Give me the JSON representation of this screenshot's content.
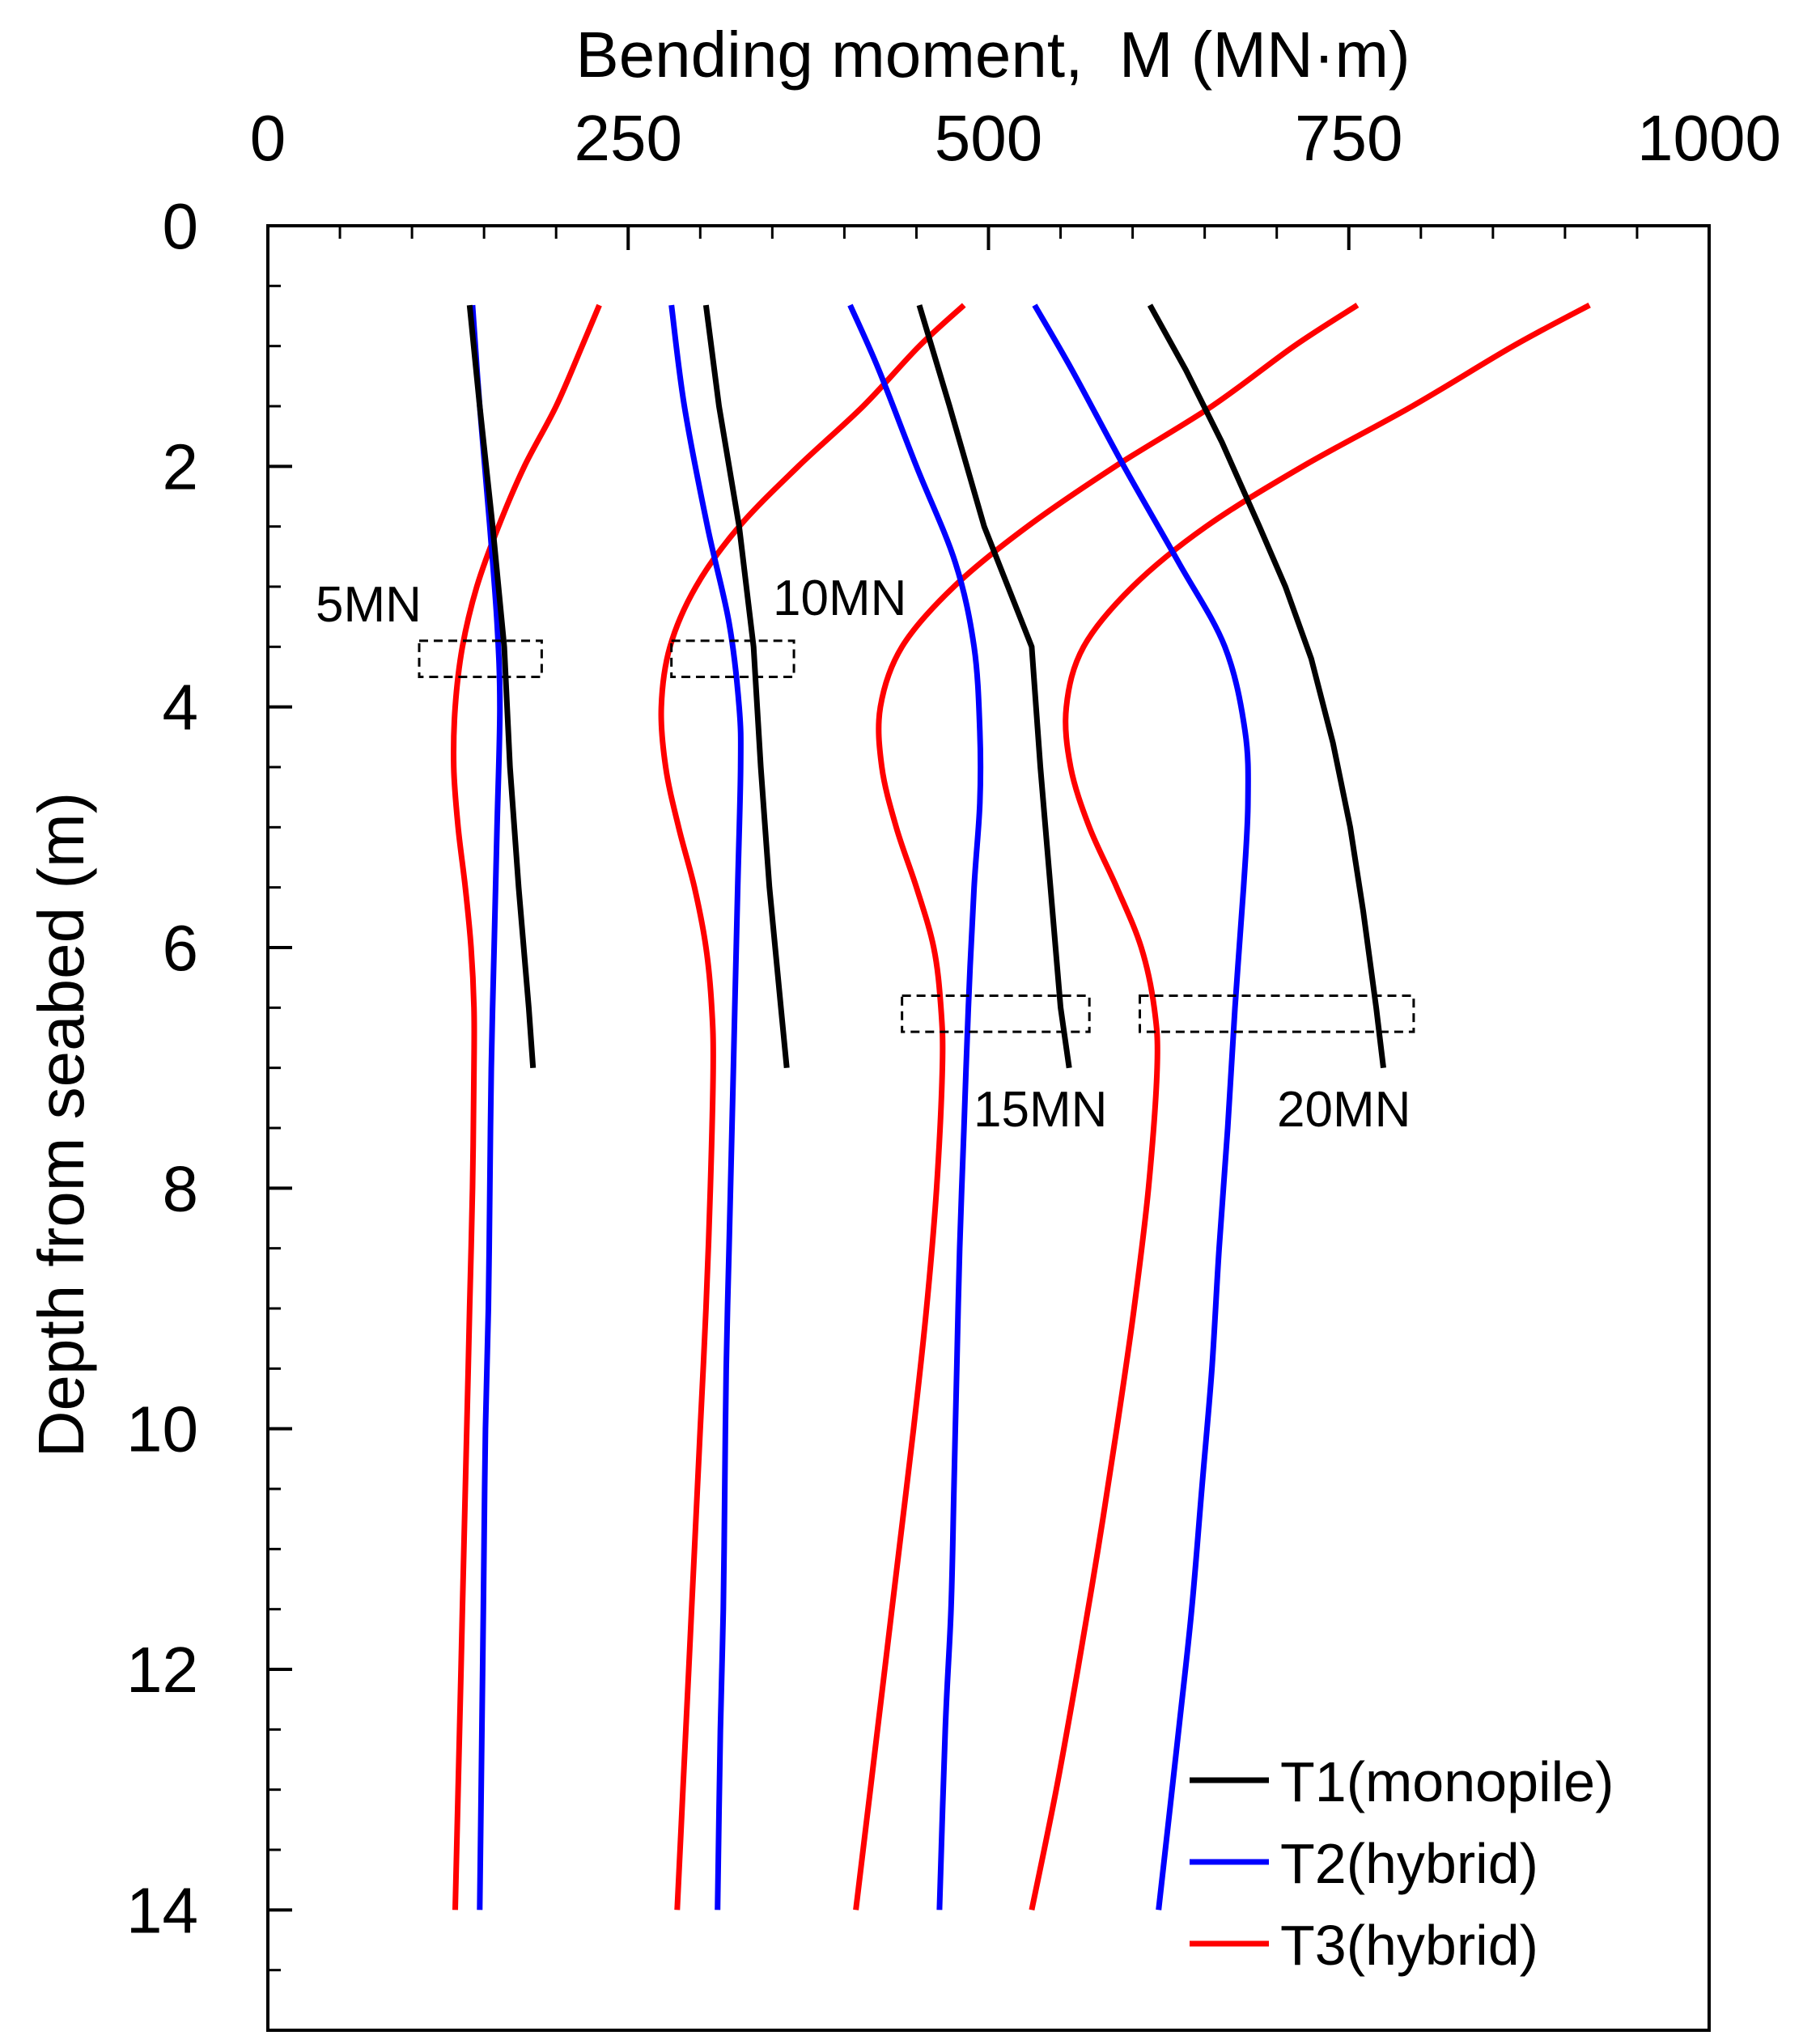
{
  "chart_data": {
    "type": "line",
    "orientation": "depth-profile",
    "xlabel": "Bending moment,  M (MN·m)",
    "ylabel": "Depth from seabed (m)",
    "xlim": [
      0,
      1000
    ],
    "ylim": [
      0,
      15
    ],
    "x_axis_position": "top",
    "y_inverted": true,
    "xticks": [
      0,
      250,
      500,
      750,
      1000
    ],
    "xtick_labels": [
      "0",
      "250",
      "500",
      "750",
      "1000"
    ],
    "yticks": [
      0,
      2,
      4,
      6,
      8,
      10,
      12,
      14
    ],
    "ytick_labels": [
      "0",
      "2",
      "4",
      "6",
      "8",
      "10",
      "12",
      "14"
    ],
    "legend": {
      "position": "bottom-right",
      "entries": [
        {
          "label": "T1(monopile)",
          "color": "#000000"
        },
        {
          "label": "T2(hybrid)",
          "color": "#0000ff"
        },
        {
          "label": "T3(hybrid)",
          "color": "#ff0000"
        }
      ]
    },
    "colors": {
      "T1": "#000000",
      "T2": "#0000ff",
      "T3": "#ff0000",
      "box": "#000000"
    },
    "load_cases": [
      {
        "label": "5MN",
        "series": [
          {
            "name": "T1(monopile)",
            "color": "#000000",
            "points": [
              [
                140,
                0.66
              ],
              [
                147,
                1.5
              ],
              [
                156,
                2.5
              ],
              [
                164,
                3.5
              ],
              [
                168,
                4.5
              ],
              [
                174,
                5.5
              ],
              [
                181,
                6.5
              ],
              [
                184,
                7.0
              ]
            ]
          },
          {
            "name": "T2(hybrid)",
            "color": "#0000ff",
            "points": [
              [
                142,
                0.66
              ],
              [
                147,
                1.5
              ],
              [
                154,
                2.5
              ],
              [
                159,
                3.3
              ],
              [
                161,
                4.0
              ],
              [
                159,
                5.0
              ],
              [
                157,
                6.0
              ],
              [
                155,
                7.0
              ],
              [
                154,
                8.0
              ],
              [
                153,
                9.0
              ],
              [
                151,
                10.0
              ],
              [
                150,
                11.0
              ],
              [
                149,
                12.0
              ],
              [
                148,
                13.0
              ],
              [
                147,
                14.0
              ]
            ]
          },
          {
            "name": "T3(hybrid)",
            "color": "#ff0000",
            "points": [
              [
                230,
                0.66
              ],
              [
                218,
                1.0
              ],
              [
                200,
                1.5
              ],
              [
                178,
                2.0
              ],
              [
                160,
                2.5
              ],
              [
                145,
                3.0
              ],
              [
                135,
                3.5
              ],
              [
                130,
                4.0
              ],
              [
                129,
                4.5
              ],
              [
                132,
                5.0
              ],
              [
                137,
                5.5
              ],
              [
                141,
                6.0
              ],
              [
                143,
                6.5
              ],
              [
                143,
                7.0
              ],
              [
                142,
                8.0
              ],
              [
                140,
                9.0
              ],
              [
                138,
                10.0
              ],
              [
                136,
                11.0
              ],
              [
                134,
                12.0
              ],
              [
                132,
                13.0
              ],
              [
                130,
                14.0
              ]
            ]
          }
        ],
        "max_box": {
          "x_range": [
            105,
            190
          ],
          "depth_range": [
            3.45,
            3.75
          ]
        }
      },
      {
        "label": "10MN",
        "series": [
          {
            "name": "T1(monopile)",
            "color": "#000000",
            "points": [
              [
                304,
                0.66
              ],
              [
                313,
                1.5
              ],
              [
                327,
                2.5
              ],
              [
                337,
                3.5
              ],
              [
                342,
                4.5
              ],
              [
                348,
                5.5
              ],
              [
                356,
                6.5
              ],
              [
                360,
                7.0
              ]
            ]
          },
          {
            "name": "T2(hybrid)",
            "color": "#0000ff",
            "points": [
              [
                280,
                0.66
              ],
              [
                289,
                1.5
              ],
              [
                305,
                2.5
              ],
              [
                320,
                3.3
              ],
              [
                327,
                4.0
              ],
              [
                328,
                4.5
              ],
              [
                326,
                5.5
              ],
              [
                324,
                6.5
              ],
              [
                322,
                7.5
              ],
              [
                320,
                8.5
              ],
              [
                318,
                9.5
              ],
              [
                317,
                10.5
              ],
              [
                316,
                11.5
              ],
              [
                314,
                12.5
              ],
              [
                312,
                14.0
              ]
            ]
          },
          {
            "name": "T3(hybrid)",
            "color": "#ff0000",
            "points": [
              [
                483,
                0.66
              ],
              [
                452,
                1.0
              ],
              [
                413,
                1.5
              ],
              [
                368,
                2.0
              ],
              [
                327,
                2.5
              ],
              [
                297,
                3.0
              ],
              [
                279,
                3.5
              ],
              [
                273,
                4.0
              ],
              [
                276,
                4.5
              ],
              [
                285,
                5.0
              ],
              [
                296,
                5.5
              ],
              [
                304,
                6.0
              ],
              [
                308,
                6.5
              ],
              [
                309,
                7.0
              ],
              [
                307,
                8.0
              ],
              [
                304,
                9.0
              ],
              [
                300,
                10.0
              ],
              [
                296,
                11.0
              ],
              [
                292,
                12.0
              ],
              [
                288,
                13.0
              ],
              [
                284,
                14.0
              ]
            ]
          }
        ],
        "max_box": {
          "x_range": [
            280,
            365
          ],
          "depth_range": [
            3.45,
            3.75
          ]
        }
      },
      {
        "label": "15MN",
        "series": [
          {
            "name": "T1(monopile)",
            "color": "#000000",
            "points": [
              [
                452,
                0.66
              ],
              [
                473,
                1.5
              ],
              [
                497,
                2.5
              ],
              [
                530,
                3.5
              ],
              [
                536,
                4.5
              ],
              [
                543,
                5.5
              ],
              [
                550,
                6.5
              ],
              [
                556,
                7.0
              ]
            ]
          },
          {
            "name": "T2(hybrid)",
            "color": "#0000ff",
            "points": [
              [
                404,
                0.66
              ],
              [
                424,
                1.2
              ],
              [
                450,
                2.0
              ],
              [
                477,
                2.8
              ],
              [
                490,
                3.5
              ],
              [
                494,
                4.2
              ],
              [
                494,
                4.8
              ],
              [
                490,
                5.5
              ],
              [
                486,
                6.5
              ],
              [
                483,
                7.5
              ],
              [
                480,
                8.5
              ],
              [
                478,
                9.5
              ],
              [
                476,
                10.5
              ],
              [
                474,
                11.5
              ],
              [
                470,
                12.5
              ],
              [
                466,
                14.0
              ]
            ]
          },
          {
            "name": "T3(hybrid)",
            "color": "#ff0000",
            "points": [
              [
                756,
                0.66
              ],
              [
                712,
                1.0
              ],
              [
                655,
                1.5
              ],
              [
                588,
                2.0
              ],
              [
                527,
                2.5
              ],
              [
                476,
                3.0
              ],
              [
                440,
                3.5
              ],
              [
                425,
                4.0
              ],
              [
                426,
                4.5
              ],
              [
                436,
                5.0
              ],
              [
                450,
                5.5
              ],
              [
                462,
                6.0
              ],
              [
                467,
                6.5
              ],
              [
                468,
                7.0
              ],
              [
                464,
                8.0
              ],
              [
                457,
                9.0
              ],
              [
                448,
                10.0
              ],
              [
                438,
                11.0
              ],
              [
                428,
                12.0
              ],
              [
                418,
                13.0
              ],
              [
                408,
                14.0
              ]
            ]
          }
        ],
        "max_box": {
          "x_range": [
            440,
            570
          ],
          "depth_range": [
            6.4,
            6.7
          ]
        }
      },
      {
        "label": "20MN",
        "series": [
          {
            "name": "T1(monopile)",
            "color": "#000000",
            "points": [
              [
                612,
                0.66
              ],
              [
                637,
                1.2
              ],
              [
                662,
                1.8
              ],
              [
                688,
                2.5
              ],
              [
                706,
                3.0
              ],
              [
                724,
                3.6
              ],
              [
                739,
                4.3
              ],
              [
                751,
                5.0
              ],
              [
                760,
                5.7
              ],
              [
                769,
                6.5
              ],
              [
                774,
                7.0
              ]
            ]
          },
          {
            "name": "T2(hybrid)",
            "color": "#0000ff",
            "points": [
              [
                532,
                0.66
              ],
              [
                558,
                1.2
              ],
              [
                594,
                2.0
              ],
              [
                632,
                2.8
              ],
              [
                664,
                3.5
              ],
              [
                678,
                4.2
              ],
              [
                680,
                4.8
              ],
              [
                677,
                5.5
              ],
              [
                671,
                6.5
              ],
              [
                666,
                7.5
              ],
              [
                660,
                8.5
              ],
              [
                655,
                9.5
              ],
              [
                648,
                10.5
              ],
              [
                641,
                11.5
              ],
              [
                632,
                12.5
              ],
              [
                618,
                14.0
              ]
            ]
          },
          {
            "name": "T3(hybrid)",
            "color": "#ff0000",
            "points": [
              [
                917,
                0.66
              ],
              [
                864,
                1.0
              ],
              [
                794,
                1.5
              ],
              [
                718,
                2.0
              ],
              [
                651,
                2.5
              ],
              [
                600,
                3.0
              ],
              [
                566,
                3.5
              ],
              [
                554,
                4.0
              ],
              [
                557,
                4.5
              ],
              [
                570,
                5.0
              ],
              [
                589,
                5.5
              ],
              [
                606,
                6.0
              ],
              [
                615,
                6.5
              ],
              [
                617,
                7.0
              ],
              [
                611,
                8.0
              ],
              [
                601,
                9.0
              ],
              [
                589,
                10.0
              ],
              [
                576,
                11.0
              ],
              [
                562,
                12.0
              ],
              [
                547,
                13.0
              ],
              [
                530,
                14.0
              ]
            ]
          }
        ],
        "max_box": {
          "x_range": [
            605,
            795
          ],
          "depth_range": [
            6.4,
            6.7
          ]
        }
      }
    ]
  }
}
